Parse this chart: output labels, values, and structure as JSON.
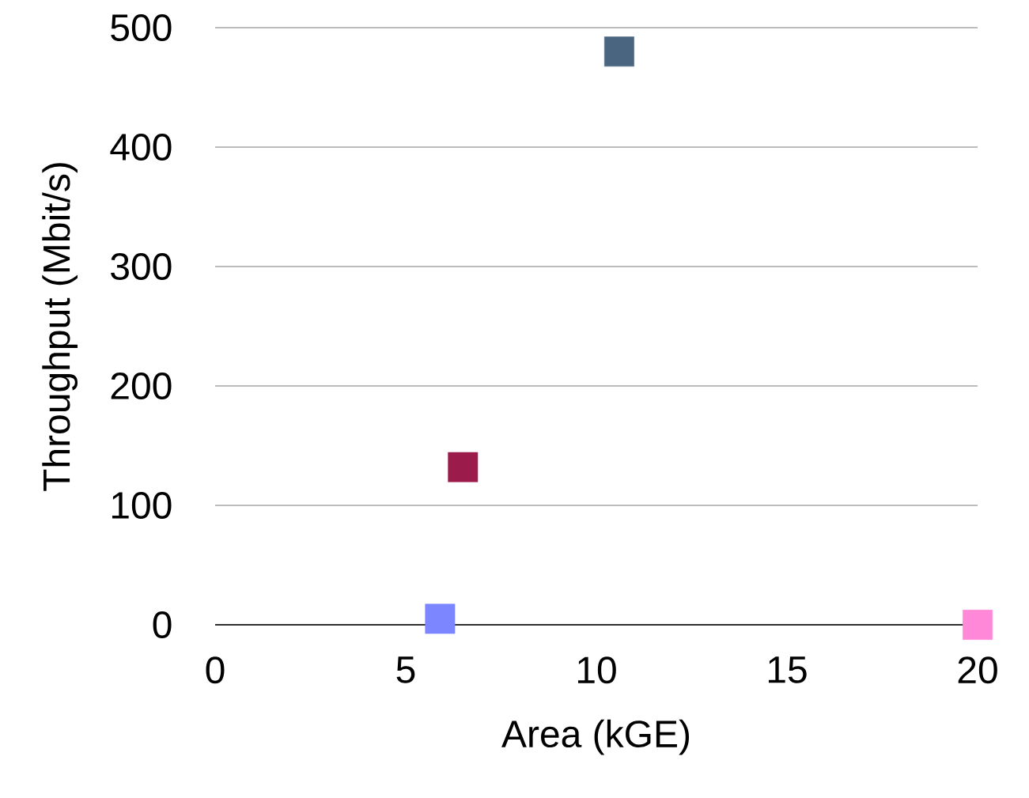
{
  "chart_data": {
    "type": "scatter",
    "xlabel": "Area (kGE)",
    "ylabel": "Throughput (Mbit/s)",
    "series": [
      {
        "color": "#4a6580",
        "x": [
          10.6
        ],
        "values": [
          480
        ]
      },
      {
        "color": "#9b1b4b",
        "x": [
          6.5
        ],
        "values": [
          132
        ]
      },
      {
        "color": "#7b86ff",
        "x": [
          5.9
        ],
        "values": [
          5
        ]
      },
      {
        "color": "#ff88d8",
        "x": [
          20
        ],
        "values": [
          0
        ]
      }
    ],
    "xlim": [
      0,
      20
    ],
    "ylim": [
      0,
      500
    ],
    "xticks": [
      0,
      5,
      10,
      15,
      20
    ],
    "yticks": [
      0,
      100,
      200,
      300,
      400,
      500
    ],
    "grid": "y",
    "marker": "square"
  }
}
